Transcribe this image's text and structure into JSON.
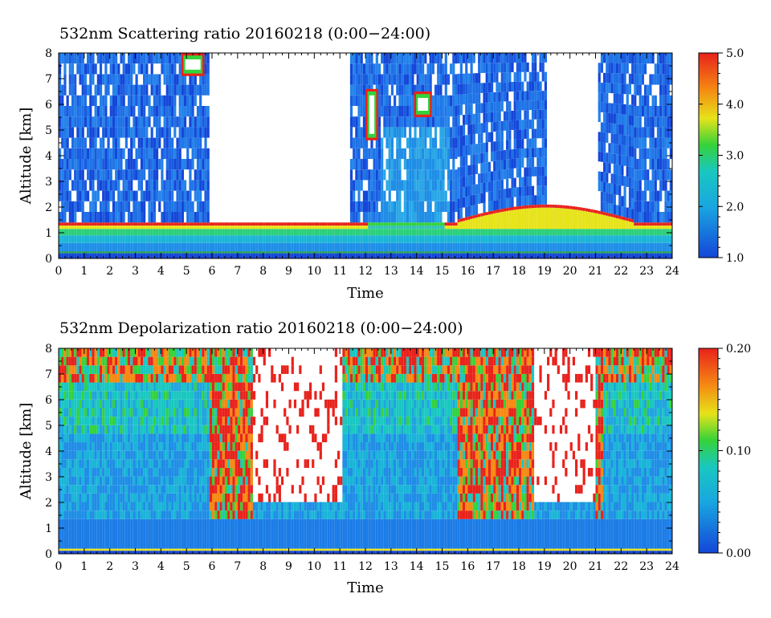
{
  "colors": {
    "low": "#1446d8",
    "mid": "#19c7c0",
    "green": "#35d23a",
    "yellow": "#e6e31a",
    "orange": "#f58a12",
    "high": "#e8221c",
    "background": "#ffffff"
  },
  "chart_data": [
    {
      "type": "heatmap",
      "title": "532nm Scattering ratio   20160218 (0:00−24:00)",
      "xlabel": "Time",
      "ylabel": "Altitude [km]",
      "xlim": [
        0,
        24
      ],
      "ylim": [
        0,
        8
      ],
      "xticks": [
        "0",
        "1",
        "2",
        "3",
        "4",
        "5",
        "6",
        "7",
        "8",
        "9",
        "10",
        "11",
        "12",
        "13",
        "14",
        "15",
        "16",
        "17",
        "18",
        "19",
        "20",
        "21",
        "22",
        "23",
        "24"
      ],
      "yticks": [
        "0",
        "1",
        "2",
        "3",
        "4",
        "5",
        "6",
        "7",
        "8"
      ],
      "colorbar": {
        "range": [
          1.0,
          5.0
        ],
        "labels": [
          "1.0",
          "2.0",
          "3.0",
          "4.0",
          "5.0"
        ],
        "values": [
          1.0,
          2.0,
          3.0,
          4.0,
          5.0
        ]
      },
      "layers": {
        "boundary_layer_top_km": 1.4,
        "cloud_gaps_hours": [
          [
            5.8,
            11.3
          ],
          [
            19.1,
            21.1
          ]
        ],
        "elevated_clouds": [
          {
            "time": [
              12.0,
              12.5
            ],
            "alt_km": [
              4.6,
              6.6
            ],
            "value": 4.5
          },
          {
            "time": [
              13.9,
              14.6
            ],
            "alt_km": [
              5.5,
              6.5
            ],
            "value": 4.5
          },
          {
            "time": [
              4.8,
              5.7
            ],
            "alt_km": [
              7.1,
              8.0
            ],
            "value": 4.8
          }
        ]
      }
    },
    {
      "type": "heatmap",
      "title": "532nm Depolarization ratio   20160218 (0:00−24:00)",
      "xlabel": "Time",
      "ylabel": "Altitude [km]",
      "xlim": [
        0,
        24
      ],
      "ylim": [
        0,
        8
      ],
      "xticks": [
        "0",
        "1",
        "2",
        "3",
        "4",
        "5",
        "6",
        "7",
        "8",
        "9",
        "10",
        "11",
        "12",
        "13",
        "14",
        "15",
        "16",
        "17",
        "18",
        "19",
        "20",
        "21",
        "22",
        "23",
        "24"
      ],
      "yticks": [
        "0",
        "1",
        "2",
        "3",
        "4",
        "5",
        "6",
        "7",
        "8"
      ],
      "colorbar": {
        "range": [
          0.0,
          0.2
        ],
        "labels": [
          "0.00",
          "0.10",
          "0.20"
        ],
        "values": [
          0.0,
          0.1,
          0.2
        ]
      }
    }
  ]
}
